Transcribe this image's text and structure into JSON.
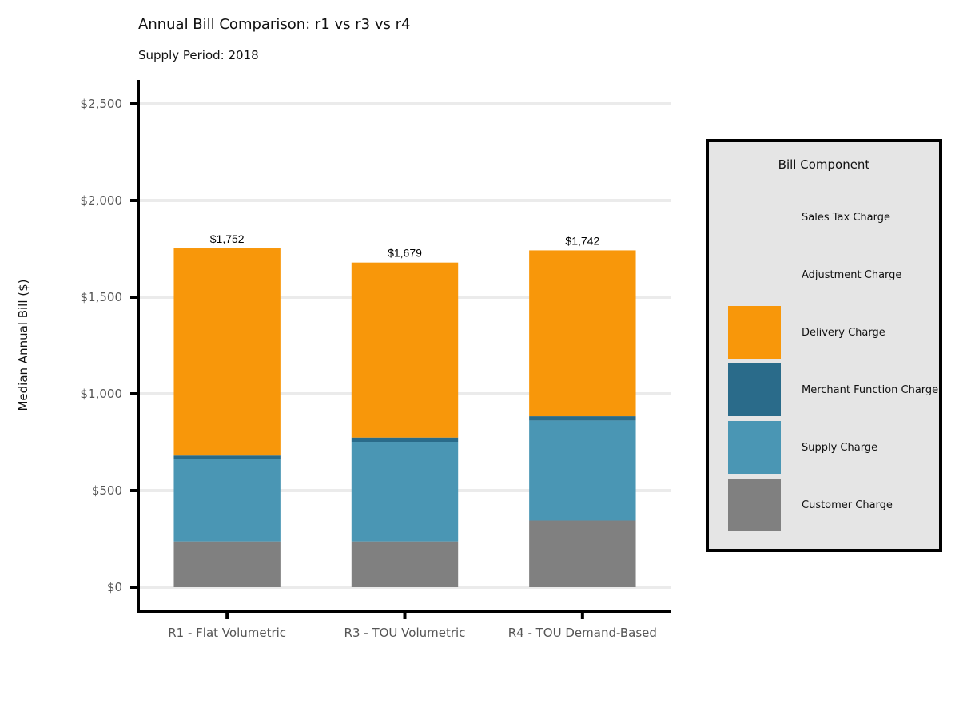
{
  "chart_data": {
    "type": "bar",
    "stacked": true,
    "title": "Annual Bill Comparison: r1 vs r3 vs r4",
    "subtitle": "Supply Period: 2018",
    "ylabel": "Median Annual Bill ($)",
    "xlabel": "",
    "ylim": [
      0,
      2500
    ],
    "yticks": [
      0,
      500,
      1000,
      1500,
      2000,
      2500
    ],
    "ytick_labels": [
      "$0",
      "$500",
      "$1,000",
      "$1,500",
      "$2,000",
      "$2,500"
    ],
    "grid": "horizontal",
    "legend_position": "right",
    "legend_title": "Bill Component",
    "categories": [
      "R1 - Flat Volumetric",
      "R3 - TOU Volumetric",
      "R4 - TOU Demand-Based"
    ],
    "totals": [
      1752,
      1679,
      1742
    ],
    "total_labels": [
      "$1,752",
      "$1,679",
      "$1,742"
    ],
    "series": [
      {
        "name": "Customer Charge",
        "color": "#808080",
        "values": [
          237,
          237,
          345
        ]
      },
      {
        "name": "Supply Charge",
        "color": "#4A96B4",
        "values": [
          426,
          515,
          517
        ]
      },
      {
        "name": "Merchant Function Charge",
        "color": "#2A6B8A",
        "values": [
          18,
          22,
          22
        ]
      },
      {
        "name": "Delivery Charge",
        "color": "#F8970A",
        "values": [
          1071,
          905,
          858
        ]
      },
      {
        "name": "Adjustment Charge",
        "color": "",
        "values": [
          0,
          0,
          0
        ]
      },
      {
        "name": "Sales Tax Charge",
        "color": "",
        "values": [
          0,
          0,
          0
        ]
      }
    ]
  }
}
